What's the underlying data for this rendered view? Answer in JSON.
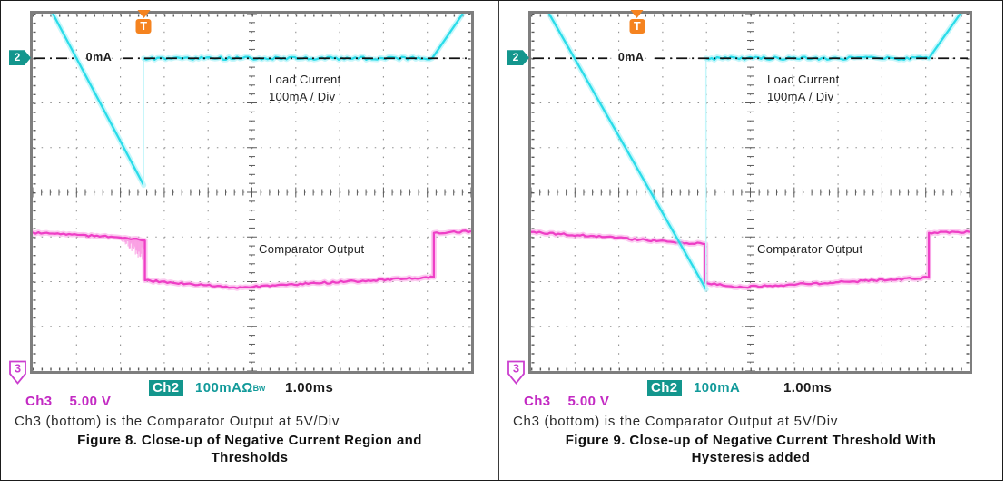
{
  "figure": {
    "panels": [
      {
        "markers": {
          "ch2_flag": "2",
          "ch3_flag": "3",
          "trigger": "T"
        },
        "scope_labels": {
          "zero": "0mA",
          "load_line1": "Load Current",
          "load_line2": "100mA / Div",
          "comparator": "Comparator Output"
        },
        "readout": {
          "ch2_label": "Ch2",
          "ch2_value": "100mA",
          "ch2_suffix": "Ω",
          "ch2_bw": "Bw",
          "time": "1.00ms",
          "ch3_label": "Ch3",
          "ch3_value": "5.00 V"
        },
        "note": "Ch3 (bottom) is the Comparator Output at 5V/Div",
        "caption_line1": "Figure 8. Close-up of Negative Current Region and",
        "caption_line2": "Thresholds"
      },
      {
        "markers": {
          "ch2_flag": "2",
          "ch3_flag": "3",
          "trigger": "T"
        },
        "scope_labels": {
          "zero": "0mA",
          "load_line1": "Load Current",
          "load_line2": "100mA / Div",
          "comparator": "Comparator Output"
        },
        "readout": {
          "ch2_label": "Ch2",
          "ch2_value": "100mA",
          "ch2_suffix": "",
          "ch2_bw": "",
          "time": "1.00ms",
          "ch3_label": "Ch3",
          "ch3_value": "5.00 V"
        },
        "note": "Ch3 (bottom) is the Comparator Output at 5V/Div",
        "caption_line1": "Figure 9. Close-up of Negative Current Threshold With",
        "caption_line2": "Hysteresis added"
      }
    ]
  },
  "colors": {
    "ch2_core": "#2adce9",
    "ch2_glow": "#97f0f8",
    "ch2_pale": "#c4f6fa",
    "ch3_core": "#ee3fc6",
    "ch3_glow": "#fa9de3",
    "teal_badge": "#13968d",
    "ch2_text": "#129a9a",
    "ch3_text": "#c32ac3",
    "trigger_orange": "#f5831f",
    "flag3_stroke": "#cb3fcf",
    "grid_dot": "#8f8f8f",
    "grid_tick": "#5a5a5a",
    "zero_line": "#111111",
    "frame_border": "#7e7e7e"
  },
  "chart_data": [
    {
      "type": "line",
      "title": "Figure 8. Close-up of Negative Current Region and Thresholds",
      "x_axis": {
        "divisions": 10,
        "scale_per_div": "1.00ms",
        "unit": "time"
      },
      "y_axis": {
        "divisions": 8,
        "ch2_scale_per_div": "100mA",
        "ch3_scale_per_div": "5.00V"
      },
      "grid": true,
      "zero_line": {
        "label": "0mA",
        "y_div": 1.0,
        "label_x_div": 1.51
      },
      "trigger_x_div": 2.53,
      "series": [
        {
          "name": "ch2-load-current-fall",
          "channel": "ch2",
          "style": "core",
          "noisy": false,
          "points_div": [
            [
              0.46,
              0.0
            ],
            [
              2.53,
              3.84
            ]
          ]
        },
        {
          "name": "ch2-dip-connector",
          "channel": "ch2",
          "style": "thin",
          "noisy": false,
          "points_div": [
            [
              2.53,
              3.84
            ],
            [
              2.53,
              1.02
            ]
          ]
        },
        {
          "name": "ch2-load-current-flat-rise",
          "channel": "ch2",
          "style": "core",
          "noisy": true,
          "noise_amp": 3.4,
          "points_div": [
            [
              2.53,
              1.0
            ],
            [
              9.11,
              1.0
            ],
            [
              9.81,
              0.0
            ]
          ]
        },
        {
          "name": "ch3-comparator-output",
          "channel": "ch3",
          "style": "core",
          "noisy": true,
          "noise_amp": 2.2,
          "points_div": [
            [
              0.0,
              4.9
            ],
            [
              1.85,
              5.0
            ],
            [
              2.56,
              5.08
            ],
            [
              2.56,
              5.97
            ],
            [
              4.6,
              6.13
            ],
            [
              9.15,
              5.9
            ],
            [
              9.15,
              4.91
            ],
            [
              10.0,
              4.87
            ]
          ]
        }
      ],
      "fuzz": {
        "x0_div": 1.84,
        "x1_div": 2.56,
        "base_y_div": 4.98,
        "max_depth_div": 0.62
      }
    },
    {
      "type": "line",
      "title": "Figure 9. Close-up of Negative Current Threshold With Hysteresis added",
      "x_axis": {
        "divisions": 10,
        "scale_per_div": "1.00ms",
        "unit": "time"
      },
      "y_axis": {
        "divisions": 8,
        "ch2_scale_per_div": "100mA",
        "ch3_scale_per_div": "5.00V"
      },
      "grid": true,
      "zero_line": {
        "label": "0mA",
        "y_div": 1.0,
        "label_x_div": 2.28
      },
      "trigger_x_div": 2.42,
      "series": [
        {
          "name": "ch2-load-current-fall",
          "channel": "ch2",
          "style": "core",
          "noisy": false,
          "points_div": [
            [
              0.41,
              0.0
            ],
            [
              3.99,
              6.17
            ]
          ]
        },
        {
          "name": "ch2-dip-connector",
          "channel": "ch2",
          "style": "thin",
          "noisy": false,
          "points_div": [
            [
              3.99,
              6.17
            ],
            [
              3.99,
              1.02
            ]
          ]
        },
        {
          "name": "ch2-load-current-flat-rise",
          "channel": "ch2",
          "style": "core",
          "noisy": true,
          "noise_amp": 3.4,
          "points_div": [
            [
              3.99,
              1.0
            ],
            [
              9.07,
              1.0
            ],
            [
              9.79,
              0.0
            ]
          ]
        },
        {
          "name": "ch3-comparator-output",
          "channel": "ch3",
          "style": "core",
          "noisy": true,
          "noise_amp": 2.2,
          "points_div": [
            [
              0.0,
              4.89
            ],
            [
              3.98,
              5.16
            ],
            [
              3.98,
              6.03
            ],
            [
              4.7,
              6.13
            ],
            [
              9.07,
              5.91
            ],
            [
              9.07,
              4.91
            ],
            [
              10.0,
              4.89
            ]
          ]
        }
      ],
      "fuzz": null
    }
  ]
}
